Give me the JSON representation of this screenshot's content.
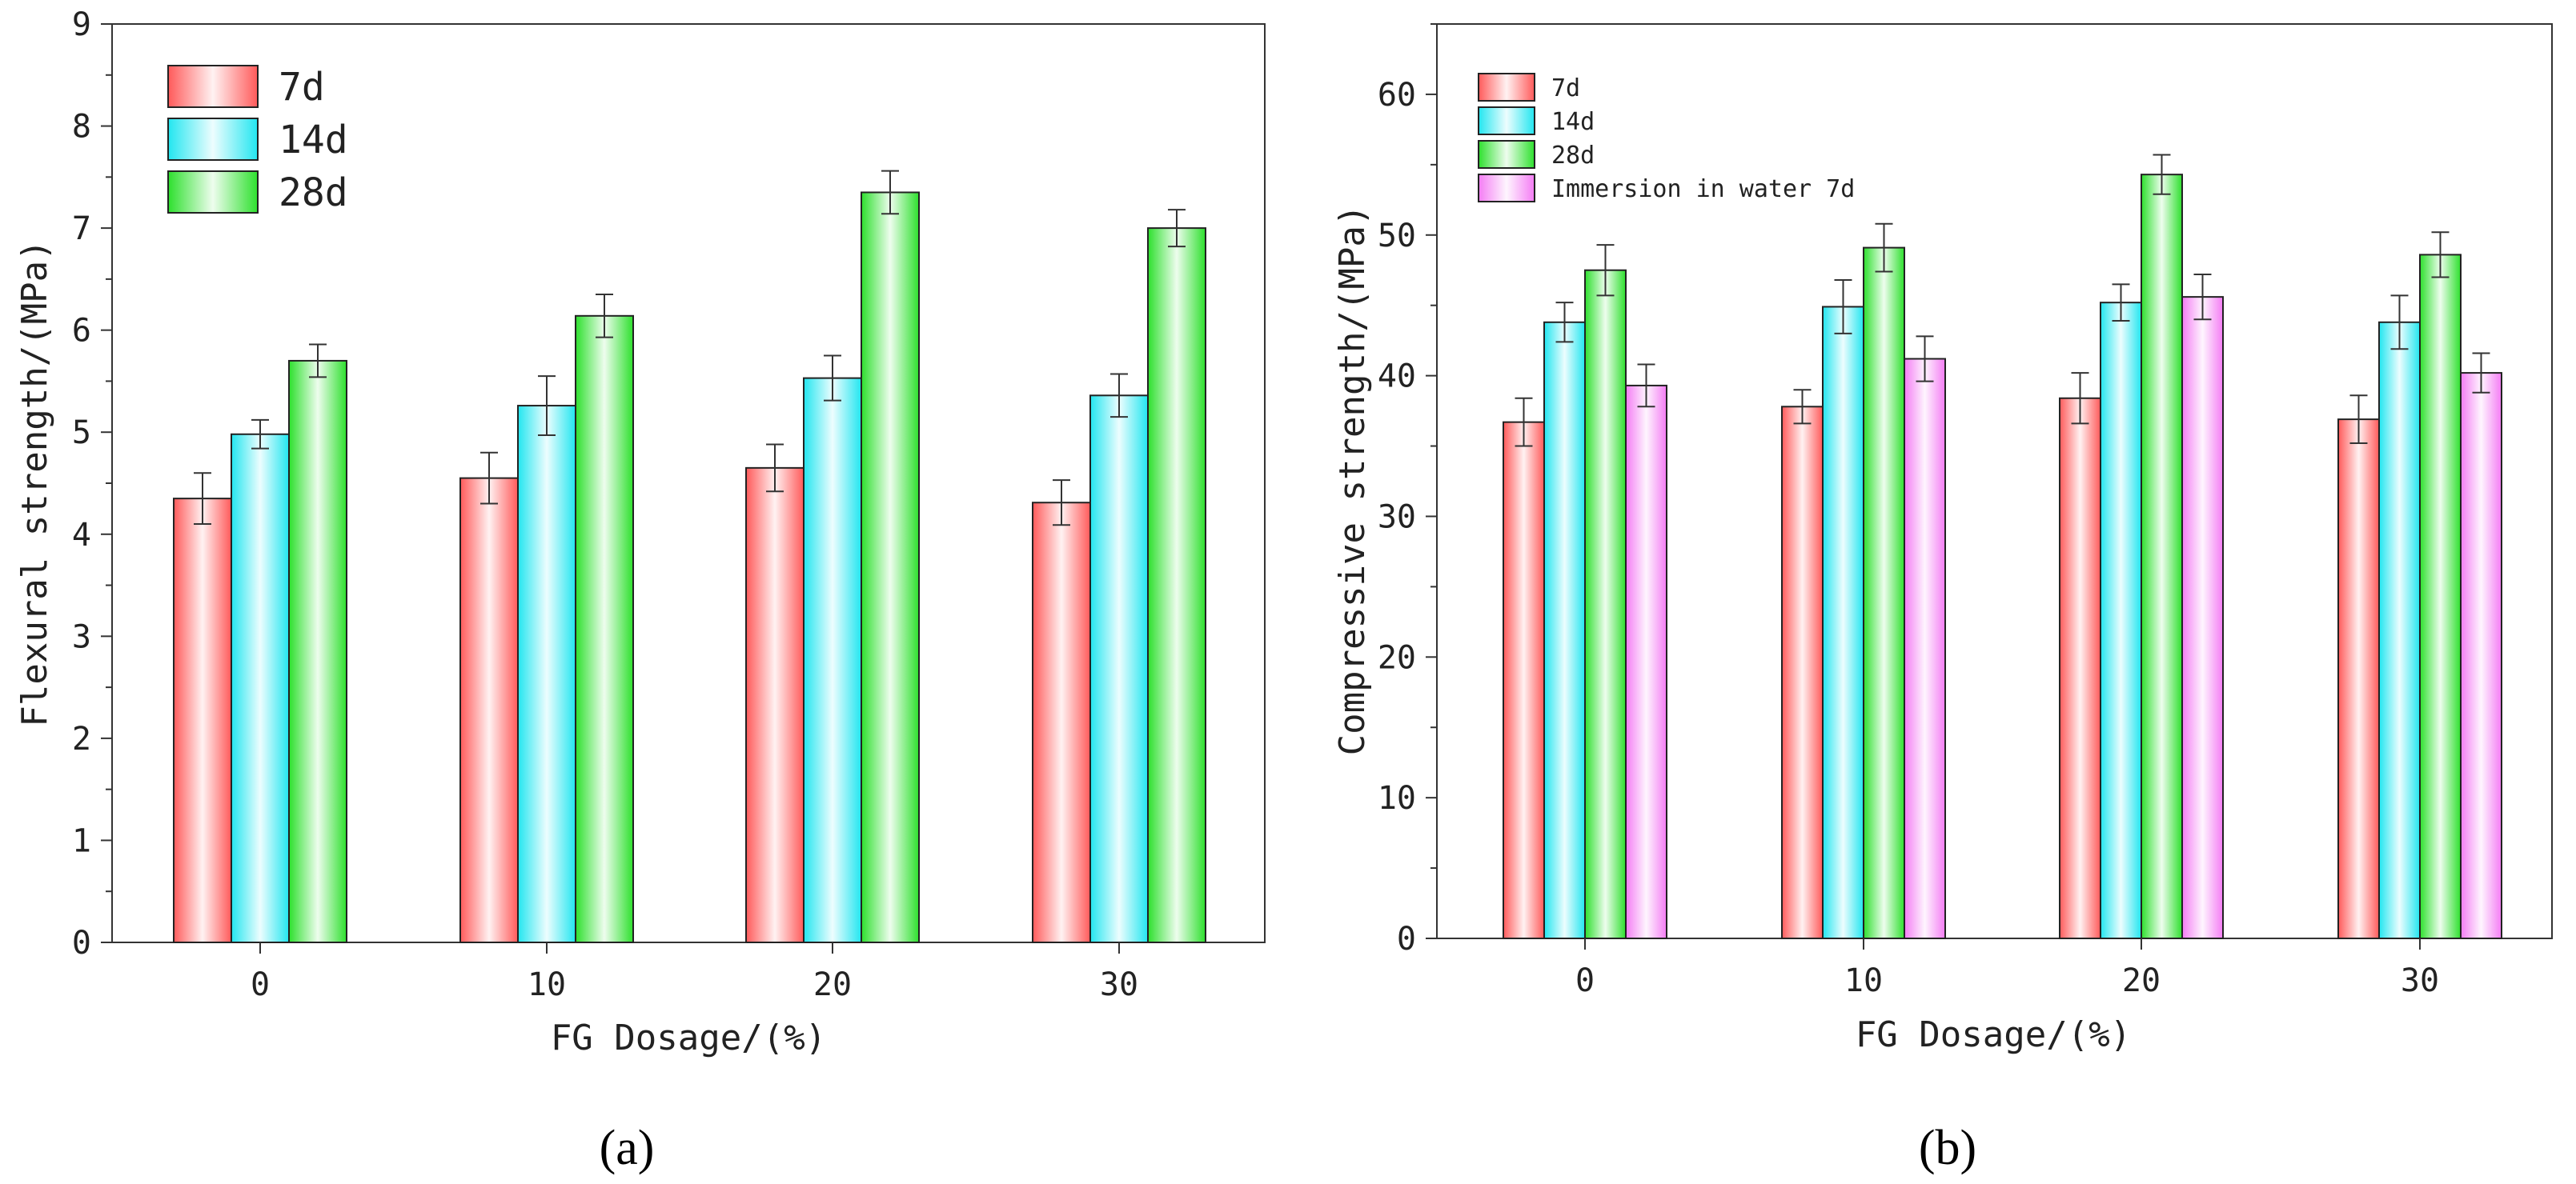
{
  "chart_data": [
    {
      "type": "bar",
      "panel_label": "(a)",
      "title": "",
      "xlabel": "FG Dosage/(%)",
      "ylabel": "Flexural strength/(MPa)",
      "ylim": [
        0,
        9
      ],
      "yticks": [
        "0",
        "1",
        "2",
        "3",
        "4",
        "5",
        "6",
        "7",
        "8",
        "9"
      ],
      "categories": [
        "0",
        "10",
        "20",
        "30"
      ],
      "legend_position": "top-left",
      "series": [
        {
          "name": "7d",
          "color": "#ff5a5a",
          "values": [
            4.35,
            4.55,
            4.65,
            4.31
          ],
          "errors": [
            0.25,
            0.25,
            0.23,
            0.22
          ]
        },
        {
          "name": "14d",
          "color": "#22e6f0",
          "values": [
            4.98,
            5.26,
            5.53,
            5.36
          ],
          "errors": [
            0.14,
            0.29,
            0.22,
            0.21
          ]
        },
        {
          "name": "28d",
          "color": "#2de02d",
          "values": [
            5.7,
            6.14,
            7.35,
            7.0
          ],
          "errors": [
            0.16,
            0.21,
            0.21,
            0.18
          ]
        }
      ]
    },
    {
      "type": "bar",
      "panel_label": "(b)",
      "title": "",
      "xlabel": "FG Dosage/(%)",
      "ylabel": "Compressive strength/(MPa)",
      "ylim": [
        0,
        65
      ],
      "yticks": [
        "0",
        "10",
        "20",
        "30",
        "40",
        "50",
        "60"
      ],
      "categories": [
        "0",
        "10",
        "20",
        "30"
      ],
      "legend_position": "top-left",
      "series": [
        {
          "name": "7d",
          "color": "#ff5a5a",
          "values": [
            36.7,
            37.8,
            38.4,
            36.9
          ],
          "errors": [
            1.7,
            1.2,
            1.8,
            1.7
          ]
        },
        {
          "name": "14d",
          "color": "#22e6f0",
          "values": [
            43.8,
            44.9,
            45.2,
            43.8
          ],
          "errors": [
            1.4,
            1.9,
            1.3,
            1.9
          ]
        },
        {
          "name": "28d",
          "color": "#2de02d",
          "values": [
            47.5,
            49.1,
            54.3,
            48.6
          ],
          "errors": [
            1.8,
            1.7,
            1.4,
            1.6
          ]
        },
        {
          "name": "Immersion in water 7d",
          "color": "#f47cf4",
          "values": [
            39.3,
            41.2,
            45.6,
            40.2
          ],
          "errors": [
            1.5,
            1.6,
            1.6,
            1.4
          ]
        }
      ]
    }
  ]
}
